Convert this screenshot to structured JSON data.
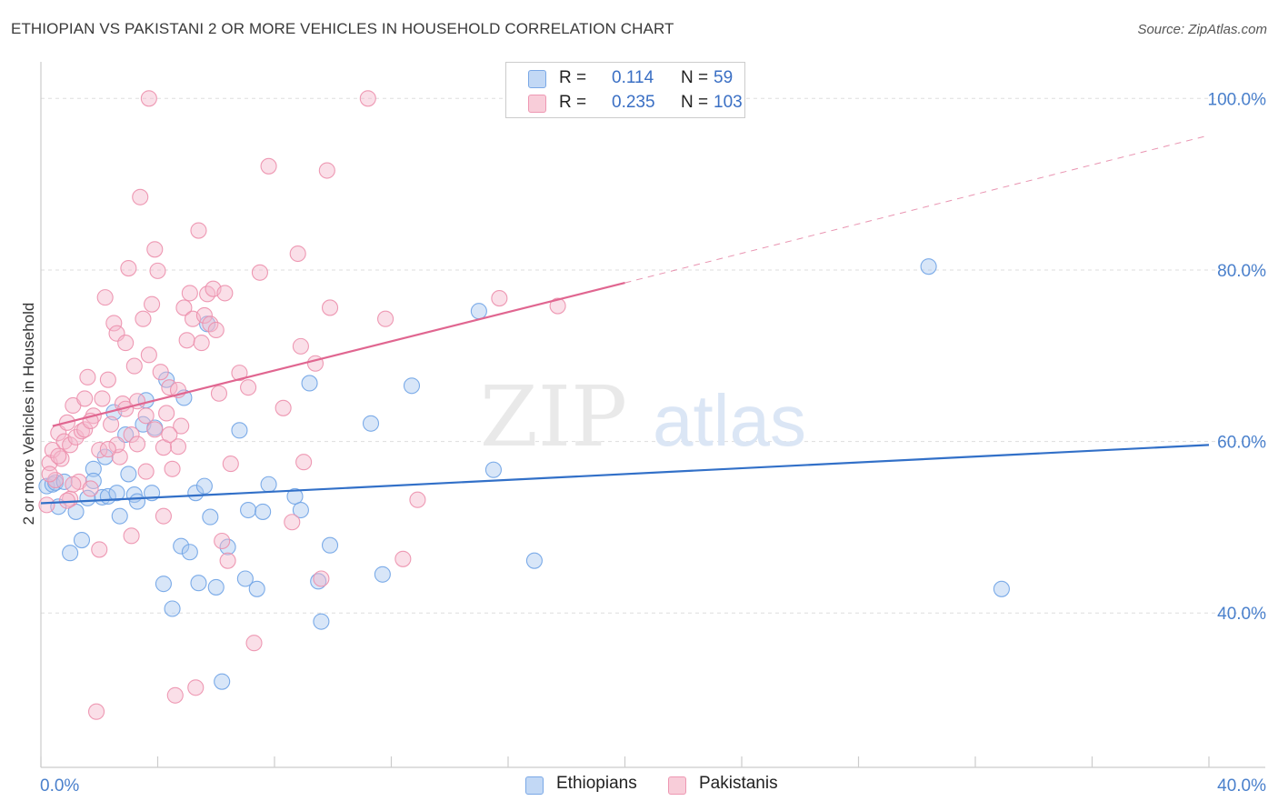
{
  "title": "ETHIOPIAN VS PAKISTANI 2 OR MORE VEHICLES IN HOUSEHOLD CORRELATION CHART",
  "source": "Source: ZipAtlas.com",
  "watermark": {
    "zip": "ZIP",
    "atlas": "atlas"
  },
  "legend": {
    "rows": [
      {
        "r_label": "R =",
        "r_value": "0.114",
        "n_label": "N =",
        "n_value": "59",
        "color": "#a8c8f0"
      },
      {
        "r_label": "R =",
        "r_value": "0.235",
        "n_label": "N =",
        "n_value": "103",
        "color": "#f4b8cb"
      }
    ],
    "bottom": [
      {
        "label": "Ethiopians",
        "color": "#a8c8f0"
      },
      {
        "label": "Pakistanis",
        "color": "#f4b8cb"
      }
    ]
  },
  "chart_data": {
    "type": "scatter",
    "title": "ETHIOPIAN VS PAKISTANI 2 OR MORE VEHICLES IN HOUSEHOLD CORRELATION CHART",
    "xlabel": "",
    "ylabel": "2 or more Vehicles in Household",
    "xlim": [
      0,
      40
    ],
    "ylim": [
      22,
      103
    ],
    "x_tick_labels": [
      "0.0%",
      "40.0%"
    ],
    "y_ticks": [
      40,
      60,
      80,
      100
    ],
    "y_tick_labels": [
      "40.0%",
      "60.0%",
      "80.0%",
      "100.0%"
    ],
    "grid": true,
    "legend_position": "top-center",
    "series": [
      {
        "name": "Ethiopians",
        "color": "#6fa3e6",
        "fill": "#a8c8f0",
        "trend": {
          "x0": 0,
          "y0": 52.8,
          "x1": 40,
          "y1": 59.6,
          "style": "solid",
          "color": "#3270c8"
        },
        "points": [
          [
            0.2,
            54.8
          ],
          [
            0.4,
            55.0
          ],
          [
            0.5,
            55.2
          ],
          [
            0.6,
            52.4
          ],
          [
            0.8,
            55.3
          ],
          [
            1.0,
            47.0
          ],
          [
            1.2,
            51.8
          ],
          [
            1.4,
            48.5
          ],
          [
            1.6,
            53.4
          ],
          [
            1.8,
            56.8
          ],
          [
            1.8,
            55.4
          ],
          [
            2.1,
            53.5
          ],
          [
            2.2,
            58.2
          ],
          [
            2.3,
            53.6
          ],
          [
            2.5,
            63.4
          ],
          [
            2.6,
            54.0
          ],
          [
            2.7,
            51.3
          ],
          [
            2.9,
            60.8
          ],
          [
            3.0,
            56.2
          ],
          [
            3.2,
            53.8
          ],
          [
            3.3,
            53.0
          ],
          [
            3.5,
            62.0
          ],
          [
            3.6,
            64.8
          ],
          [
            3.8,
            54.0
          ],
          [
            3.9,
            61.6
          ],
          [
            4.2,
            43.4
          ],
          [
            4.3,
            67.2
          ],
          [
            4.5,
            40.5
          ],
          [
            4.8,
            47.8
          ],
          [
            4.9,
            65.1
          ],
          [
            5.1,
            47.1
          ],
          [
            5.3,
            54.0
          ],
          [
            5.4,
            43.5
          ],
          [
            5.6,
            54.8
          ],
          [
            5.7,
            73.7
          ],
          [
            5.8,
            51.2
          ],
          [
            6.0,
            43.0
          ],
          [
            6.4,
            47.7
          ],
          [
            6.8,
            61.3
          ],
          [
            7.0,
            44.0
          ],
          [
            7.1,
            52.0
          ],
          [
            7.4,
            42.8
          ],
          [
            7.6,
            51.8
          ],
          [
            7.8,
            55.0
          ],
          [
            8.7,
            53.6
          ],
          [
            8.9,
            52.0
          ],
          [
            9.2,
            66.8
          ],
          [
            9.5,
            43.7
          ],
          [
            9.6,
            39.0
          ],
          [
            9.9,
            47.9
          ],
          [
            11.3,
            62.1
          ],
          [
            11.7,
            44.5
          ],
          [
            12.7,
            66.5
          ],
          [
            15.0,
            75.2
          ],
          [
            15.5,
            56.7
          ],
          [
            16.9,
            46.1
          ],
          [
            30.4,
            80.4
          ],
          [
            32.9,
            42.8
          ],
          [
            6.2,
            32.0
          ]
        ]
      },
      {
        "name": "Pakistanis",
        "color": "#ec8fac",
        "fill": "#f4b8cb",
        "trend": {
          "x0": 0.4,
          "y0": 61.8,
          "x1": 20,
          "y1": 78.5,
          "dash_to_x": 40,
          "dash_to_y": 95.7,
          "style": "solid-then-dashed",
          "color": "#e06690"
        },
        "points": [
          [
            0.2,
            52.6
          ],
          [
            0.3,
            57.5
          ],
          [
            0.4,
            59.0
          ],
          [
            0.5,
            55.5
          ],
          [
            0.6,
            61.0
          ],
          [
            0.7,
            58.0
          ],
          [
            0.8,
            60.0
          ],
          [
            0.9,
            62.2
          ],
          [
            1.0,
            59.6
          ],
          [
            1.1,
            64.2
          ],
          [
            1.2,
            60.5
          ],
          [
            1.3,
            55.3
          ],
          [
            1.4,
            61.2
          ],
          [
            1.5,
            65.0
          ],
          [
            1.6,
            67.5
          ],
          [
            1.7,
            54.5
          ],
          [
            1.8,
            63.0
          ],
          [
            1.9,
            28.5
          ],
          [
            2.0,
            59.0
          ],
          [
            2.1,
            65.0
          ],
          [
            2.2,
            76.8
          ],
          [
            2.3,
            67.2
          ],
          [
            2.4,
            62.0
          ],
          [
            2.5,
            73.8
          ],
          [
            2.6,
            72.6
          ],
          [
            2.7,
            58.2
          ],
          [
            2.8,
            64.4
          ],
          [
            2.9,
            71.5
          ],
          [
            3.0,
            80.2
          ],
          [
            3.1,
            60.8
          ],
          [
            3.2,
            68.8
          ],
          [
            3.3,
            64.7
          ],
          [
            3.4,
            88.5
          ],
          [
            3.5,
            74.3
          ],
          [
            3.6,
            56.5
          ],
          [
            3.7,
            70.1
          ],
          [
            3.8,
            76.0
          ],
          [
            3.9,
            82.4
          ],
          [
            4.0,
            79.9
          ],
          [
            4.1,
            68.1
          ],
          [
            4.2,
            51.3
          ],
          [
            4.3,
            63.3
          ],
          [
            4.4,
            66.3
          ],
          [
            4.5,
            56.8
          ],
          [
            4.6,
            30.4
          ],
          [
            4.7,
            59.4
          ],
          [
            4.8,
            61.8
          ],
          [
            4.9,
            75.6
          ],
          [
            5.0,
            71.8
          ],
          [
            5.1,
            77.3
          ],
          [
            5.2,
            74.3
          ],
          [
            5.3,
            31.3
          ],
          [
            5.4,
            84.6
          ],
          [
            5.5,
            71.5
          ],
          [
            5.6,
            74.7
          ],
          [
            5.7,
            77.2
          ],
          [
            5.8,
            73.7
          ],
          [
            5.9,
            77.8
          ],
          [
            6.0,
            73.0
          ],
          [
            6.1,
            65.6
          ],
          [
            6.2,
            48.4
          ],
          [
            6.3,
            77.3
          ],
          [
            6.4,
            46.1
          ],
          [
            6.5,
            57.4
          ],
          [
            6.8,
            68.0
          ],
          [
            7.1,
            66.3
          ],
          [
            7.3,
            36.5
          ],
          [
            7.5,
            79.7
          ],
          [
            7.8,
            92.1
          ],
          [
            8.3,
            63.9
          ],
          [
            8.6,
            50.6
          ],
          [
            8.8,
            81.9
          ],
          [
            8.9,
            71.1
          ],
          [
            9.0,
            57.6
          ],
          [
            9.4,
            69.1
          ],
          [
            9.6,
            44.0
          ],
          [
            9.8,
            91.6
          ],
          [
            9.9,
            75.6
          ],
          [
            11.2,
            100.0
          ],
          [
            11.8,
            74.3
          ],
          [
            12.4,
            46.3
          ],
          [
            12.9,
            53.2
          ],
          [
            15.7,
            76.7
          ],
          [
            17.7,
            75.8
          ],
          [
            3.7,
            100.0
          ],
          [
            0.3,
            56.2
          ],
          [
            1.0,
            53.3
          ],
          [
            1.5,
            61.4
          ],
          [
            2.0,
            47.4
          ],
          [
            2.6,
            59.6
          ],
          [
            2.9,
            63.8
          ],
          [
            3.1,
            49.0
          ],
          [
            3.3,
            59.7
          ],
          [
            3.6,
            63.0
          ],
          [
            3.9,
            61.4
          ],
          [
            4.2,
            59.3
          ],
          [
            4.4,
            60.8
          ],
          [
            4.7,
            66.0
          ],
          [
            0.6,
            58.3
          ],
          [
            1.7,
            62.4
          ],
          [
            2.3,
            59.1
          ],
          [
            1.1,
            55.0
          ],
          [
            0.9,
            53.1
          ]
        ]
      }
    ]
  }
}
